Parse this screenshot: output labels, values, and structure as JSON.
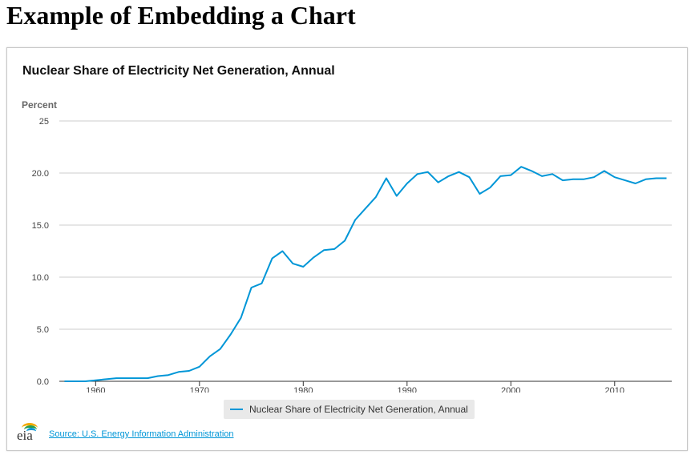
{
  "page": {
    "heading": "Example of Embedding a Chart"
  },
  "chart": {
    "title": "Nuclear Share of Electricity Net Generation, Annual",
    "source_label": "Source: U.S. Energy Information Administration",
    "logo_text": "eia"
  },
  "colors": {
    "series": "#0096d7",
    "grid": "#cccccc",
    "axis": "#333333"
  },
  "chart_data": {
    "type": "line",
    "title": "Nuclear Share of Electricity Net Generation, Annual",
    "ylabel": "Percent",
    "xlabel": "",
    "xlim": [
      1956.5,
      2015.5
    ],
    "ylim": [
      0,
      25
    ],
    "x_ticks": [
      "1960",
      "1970",
      "1980",
      "1990",
      "2000",
      "2010"
    ],
    "y_ticks": [
      "0.0",
      "5.0",
      "10.0",
      "15.0",
      "20.0",
      "25"
    ],
    "grid": true,
    "legend_position": "bottom-center",
    "x": [
      1957,
      1958,
      1959,
      1960,
      1961,
      1962,
      1963,
      1964,
      1965,
      1966,
      1967,
      1968,
      1969,
      1970,
      1971,
      1972,
      1973,
      1974,
      1975,
      1976,
      1977,
      1978,
      1979,
      1980,
      1981,
      1982,
      1983,
      1984,
      1985,
      1986,
      1987,
      1988,
      1989,
      1990,
      1991,
      1992,
      1993,
      1994,
      1995,
      1996,
      1997,
      1998,
      1999,
      2000,
      2001,
      2002,
      2003,
      2004,
      2005,
      2006,
      2007,
      2008,
      2009,
      2010,
      2011,
      2012,
      2013,
      2014,
      2015
    ],
    "series": [
      {
        "name": "Nuclear Share of Electricity Net Generation, Annual",
        "values": [
          0.0,
          0.0,
          0.0,
          0.1,
          0.2,
          0.3,
          0.3,
          0.3,
          0.3,
          0.5,
          0.6,
          0.9,
          1.0,
          1.4,
          2.4,
          3.1,
          4.5,
          6.1,
          9.0,
          9.4,
          11.8,
          12.5,
          11.3,
          11.0,
          11.9,
          12.6,
          12.7,
          13.5,
          15.5,
          16.6,
          17.7,
          19.5,
          17.8,
          19.0,
          19.9,
          20.1,
          19.1,
          19.7,
          20.1,
          19.6,
          18.0,
          18.6,
          19.7,
          19.8,
          20.6,
          20.2,
          19.7,
          19.9,
          19.3,
          19.4,
          19.4,
          19.6,
          20.2,
          19.6,
          19.3,
          19.0,
          19.4,
          19.5,
          19.5
        ]
      }
    ]
  }
}
